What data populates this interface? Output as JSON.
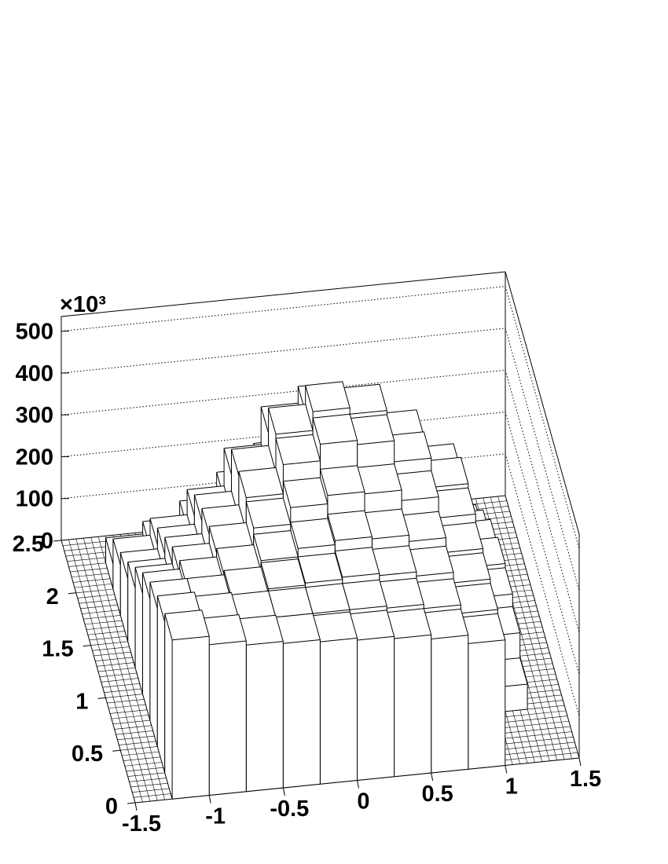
{
  "chart_data": {
    "type": "lego",
    "x_bins": [
      -1.5,
      -1.25,
      -1,
      -0.75,
      -0.5,
      -0.25,
      0,
      0.25,
      0.5,
      0.75,
      1,
      1.25,
      1.5
    ],
    "y_bins": [
      0,
      0.25,
      0.5,
      0.75,
      1,
      1.25,
      1.5,
      1.75,
      2,
      2.25,
      2.5
    ],
    "values": [
      [
        0,
        380,
        360,
        350,
        345,
        340,
        335,
        330,
        320,
        300,
        0,
        0
      ],
      [
        0,
        360,
        350,
        345,
        345,
        345,
        345,
        340,
        330,
        310,
        0,
        0
      ],
      [
        0,
        330,
        330,
        340,
        350,
        355,
        360,
        355,
        345,
        320,
        60,
        0
      ],
      [
        0,
        290,
        310,
        330,
        355,
        375,
        385,
        380,
        365,
        330,
        120,
        0
      ],
      [
        0,
        240,
        280,
        320,
        370,
        410,
        430,
        425,
        400,
        350,
        150,
        0
      ],
      [
        0,
        190,
        240,
        300,
        380,
        450,
        490,
        480,
        430,
        360,
        160,
        0
      ],
      [
        0,
        150,
        200,
        270,
        370,
        460,
        505,
        490,
        420,
        330,
        140,
        0
      ],
      [
        0,
        120,
        160,
        220,
        310,
        400,
        440,
        420,
        350,
        260,
        100,
        0
      ],
      [
        0,
        60,
        90,
        130,
        190,
        250,
        280,
        260,
        210,
        150,
        50,
        0
      ],
      [
        0,
        0,
        0,
        0,
        0,
        0,
        0,
        0,
        0,
        0,
        0,
        0
      ]
    ],
    "color": "#ffffff",
    "xlim": [
      -1.5,
      1.5
    ],
    "xticks": [
      -1.5,
      -1,
      -0.5,
      0,
      0.5,
      1,
      1.5
    ],
    "ylim": [
      0,
      2.5
    ],
    "yticks": [
      0,
      0.5,
      1,
      1.5,
      2,
      2.5
    ],
    "zlim": [
      0,
      535
    ],
    "zticks": [
      0,
      100,
      200,
      300,
      400,
      500
    ],
    "z_multiplier": "×10³",
    "grid": true
  }
}
